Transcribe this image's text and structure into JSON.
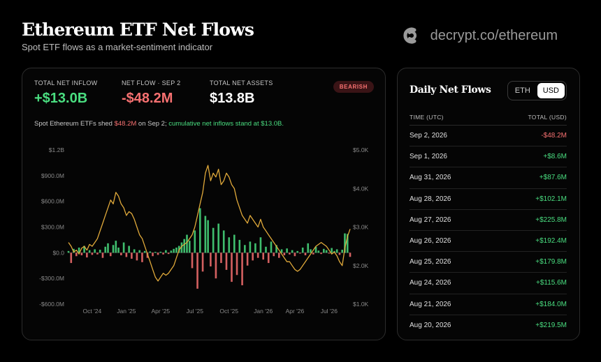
{
  "header": {
    "title": "Ethereum ETF Net Flows",
    "subtitle": "Spot ETF flows as a market-sentiment indicator",
    "brand": "decrypt.co/ethereum"
  },
  "stats": {
    "total_inflow_label": "TOTAL NET INFLOW",
    "total_inflow_value": "+$13.0B",
    "net_flow_label": "NET FLOW · SEP 2",
    "net_flow_value": "-$48.2M",
    "total_assets_label": "TOTAL NET ASSETS",
    "total_assets_value": "$13.8B",
    "badge": "BEARISH"
  },
  "note": {
    "prefix": "Spot Ethereum ETFs shed ",
    "amount": "$48.2M",
    "middle": " on Sep 2; ",
    "cumulative": "cumulative net inflows stand at $13.0B."
  },
  "colors": {
    "positive": "#4ade80",
    "negative": "#f87171",
    "price_line": "#e0a93a"
  },
  "chart_data": {
    "type": "bar",
    "overlay": "line",
    "left_axis": {
      "ticks": [
        "$1.2B",
        "$900.0M",
        "$600.0M",
        "$300.0M",
        "$0.0",
        "-$300.0M",
        "-$600.0M"
      ],
      "range": [
        -600,
        1200
      ],
      "unit": "$M"
    },
    "right_axis": {
      "ticks": [
        "$5.0K",
        "$4.0K",
        "$3.0K",
        "$2.0K",
        "$1.0K"
      ],
      "range": [
        1000,
        5000
      ],
      "unit": "$"
    },
    "x_ticks": [
      "Oct '24",
      "Jan '25",
      "Apr '25",
      "Jul '25",
      "Oct '25",
      "Jan '26",
      "Apr '26",
      "Jul '26"
    ],
    "x_range": [
      0,
      107
    ],
    "x_tick_positions": [
      9,
      22,
      35,
      48,
      61,
      74,
      86,
      99
    ],
    "flows": [
      [
        0,
        20
      ],
      [
        1,
        -120
      ],
      [
        2,
        45
      ],
      [
        3,
        -40
      ],
      [
        4,
        60
      ],
      [
        5,
        -30
      ],
      [
        6,
        80
      ],
      [
        7,
        -55
      ],
      [
        8,
        30
      ],
      [
        9,
        -25
      ],
      [
        10,
        40
      ],
      [
        11,
        -20
      ],
      [
        12,
        35
      ],
      [
        13,
        -60
      ],
      [
        14,
        70
      ],
      [
        15,
        110
      ],
      [
        16,
        -40
      ],
      [
        17,
        90
      ],
      [
        18,
        140
      ],
      [
        19,
        60
      ],
      [
        20,
        -30
      ],
      [
        21,
        120
      ],
      [
        22,
        -50
      ],
      [
        23,
        80
      ],
      [
        24,
        -70
      ],
      [
        25,
        40
      ],
      [
        26,
        -90
      ],
      [
        27,
        30
      ],
      [
        28,
        -110
      ],
      [
        29,
        20
      ],
      [
        30,
        -60
      ],
      [
        31,
        15
      ],
      [
        32,
        -40
      ],
      [
        33,
        10
      ],
      [
        34,
        -25
      ],
      [
        35,
        12
      ],
      [
        36,
        -20
      ],
      [
        37,
        30
      ],
      [
        38,
        -15
      ],
      [
        39,
        25
      ],
      [
        40,
        45
      ],
      [
        41,
        60
      ],
      [
        42,
        80
      ],
      [
        43,
        120
      ],
      [
        44,
        160
      ],
      [
        45,
        210
      ],
      [
        46,
        140
      ],
      [
        47,
        -180
      ],
      [
        48,
        260
      ],
      [
        49,
        -420
      ],
      [
        50,
        520
      ],
      [
        51,
        -220
      ],
      [
        52,
        430
      ],
      [
        53,
        380
      ],
      [
        54,
        -160
      ],
      [
        55,
        290
      ],
      [
        56,
        -300
      ],
      [
        57,
        340
      ],
      [
        58,
        -120
      ],
      [
        59,
        260
      ],
      [
        60,
        -200
      ],
      [
        61,
        180
      ],
      [
        62,
        -340
      ],
      [
        63,
        210
      ],
      [
        64,
        -260
      ],
      [
        65,
        150
      ],
      [
        66,
        -380
      ],
      [
        67,
        90
      ],
      [
        68,
        -150
      ],
      [
        69,
        130
      ],
      [
        70,
        -90
      ],
      [
        71,
        110
      ],
      [
        72,
        -60
      ],
      [
        73,
        180
      ],
      [
        74,
        -80
      ],
      [
        75,
        70
      ],
      [
        76,
        -120
      ],
      [
        77,
        130
      ],
      [
        78,
        -40
      ],
      [
        79,
        90
      ],
      [
        80,
        -60
      ],
      [
        81,
        40
      ],
      [
        82,
        -30
      ],
      [
        83,
        50
      ],
      [
        84,
        -20
      ],
      [
        85,
        30
      ],
      [
        86,
        -40
      ],
      [
        87,
        20
      ],
      [
        88,
        -10
      ],
      [
        89,
        60
      ],
      [
        90,
        -30
      ],
      [
        91,
        110
      ],
      [
        92,
        40
      ],
      [
        93,
        -20
      ],
      [
        94,
        70
      ],
      [
        95,
        25
      ],
      [
        96,
        -15
      ],
      [
        97,
        45
      ],
      [
        98,
        30
      ],
      [
        99,
        -10
      ],
      [
        100,
        55
      ],
      [
        101,
        20
      ],
      [
        102,
        40
      ],
      [
        103,
        -25
      ],
      [
        104,
        35
      ],
      [
        105,
        225.8
      ],
      [
        106,
        219.5
      ],
      [
        107,
        -48.2
      ]
    ],
    "price": [
      [
        0,
        2600
      ],
      [
        1,
        2500
      ],
      [
        2,
        2350
      ],
      [
        3,
        2400
      ],
      [
        4,
        2300
      ],
      [
        5,
        2450
      ],
      [
        6,
        2500
      ],
      [
        7,
        2400
      ],
      [
        8,
        2550
      ],
      [
        9,
        2500
      ],
      [
        10,
        2600
      ],
      [
        11,
        2700
      ],
      [
        12,
        2900
      ],
      [
        13,
        3100
      ],
      [
        14,
        3300
      ],
      [
        15,
        3500
      ],
      [
        16,
        3700
      ],
      [
        17,
        3600
      ],
      [
        18,
        3900
      ],
      [
        19,
        3800
      ],
      [
        20,
        3600
      ],
      [
        21,
        3500
      ],
      [
        22,
        3300
      ],
      [
        23,
        3400
      ],
      [
        24,
        3350
      ],
      [
        25,
        3200
      ],
      [
        26,
        3000
      ],
      [
        27,
        2800
      ],
      [
        28,
        2700
      ],
      [
        29,
        2500
      ],
      [
        30,
        2300
      ],
      [
        31,
        2100
      ],
      [
        32,
        1900
      ],
      [
        33,
        1700
      ],
      [
        34,
        1600
      ],
      [
        35,
        1700
      ],
      [
        36,
        1800
      ],
      [
        37,
        1750
      ],
      [
        38,
        1800
      ],
      [
        39,
        1900
      ],
      [
        40,
        2000
      ],
      [
        41,
        2200
      ],
      [
        42,
        2400
      ],
      [
        43,
        2500
      ],
      [
        44,
        2550
      ],
      [
        45,
        2600
      ],
      [
        46,
        2700
      ],
      [
        47,
        2800
      ],
      [
        48,
        3000
      ],
      [
        49,
        3300
      ],
      [
        50,
        3600
      ],
      [
        51,
        3900
      ],
      [
        52,
        4400
      ],
      [
        53,
        4600
      ],
      [
        54,
        4200
      ],
      [
        55,
        4400
      ],
      [
        56,
        4300
      ],
      [
        57,
        4500
      ],
      [
        58,
        4100
      ],
      [
        59,
        4200
      ],
      [
        60,
        4400
      ],
      [
        61,
        4300
      ],
      [
        62,
        4100
      ],
      [
        63,
        4000
      ],
      [
        64,
        3700
      ],
      [
        65,
        3500
      ],
      [
        66,
        3300
      ],
      [
        67,
        3200
      ],
      [
        68,
        3100
      ],
      [
        69,
        3300
      ],
      [
        70,
        3200
      ],
      [
        71,
        3100
      ],
      [
        72,
        3000
      ],
      [
        73,
        3200
      ],
      [
        74,
        3000
      ],
      [
        75,
        2900
      ],
      [
        76,
        2800
      ],
      [
        77,
        2700
      ],
      [
        78,
        2600
      ],
      [
        79,
        2500
      ],
      [
        80,
        2400
      ],
      [
        81,
        2300
      ],
      [
        82,
        2200
      ],
      [
        83,
        2100
      ],
      [
        84,
        2100
      ],
      [
        85,
        2000
      ],
      [
        86,
        1900
      ],
      [
        87,
        1850
      ],
      [
        88,
        1900
      ],
      [
        89,
        2000
      ],
      [
        90,
        2100
      ],
      [
        91,
        2200
      ],
      [
        92,
        2300
      ],
      [
        93,
        2400
      ],
      [
        94,
        2500
      ],
      [
        95,
        2550
      ],
      [
        96,
        2600
      ],
      [
        97,
        2550
      ],
      [
        98,
        2500
      ],
      [
        99,
        2400
      ],
      [
        100,
        2300
      ],
      [
        101,
        2350
      ],
      [
        102,
        2250
      ],
      [
        103,
        2100
      ],
      [
        104,
        2000
      ],
      [
        105,
        2450
      ],
      [
        106,
        2750
      ],
      [
        107,
        2950
      ]
    ]
  },
  "side": {
    "title": "Daily Net Flows",
    "toggle_eth": "ETH",
    "toggle_usd": "USD",
    "col_time": "TIME (UTC)",
    "col_total": "TOTAL (USD)",
    "rows": [
      {
        "date": "Sep 2, 2026",
        "value": "-$48.2M",
        "sign": "neg"
      },
      {
        "date": "Sep 1, 2026",
        "value": "+$8.6M",
        "sign": "pos"
      },
      {
        "date": "Aug 31, 2026",
        "value": "+$87.6M",
        "sign": "pos"
      },
      {
        "date": "Aug 28, 2026",
        "value": "+$102.1M",
        "sign": "pos"
      },
      {
        "date": "Aug 27, 2026",
        "value": "+$225.8M",
        "sign": "pos"
      },
      {
        "date": "Aug 26, 2026",
        "value": "+$192.4M",
        "sign": "pos"
      },
      {
        "date": "Aug 25, 2026",
        "value": "+$179.8M",
        "sign": "pos"
      },
      {
        "date": "Aug 24, 2026",
        "value": "+$115.6M",
        "sign": "pos"
      },
      {
        "date": "Aug 21, 2026",
        "value": "+$184.0M",
        "sign": "pos"
      },
      {
        "date": "Aug 20, 2026",
        "value": "+$219.5M",
        "sign": "pos"
      }
    ]
  }
}
